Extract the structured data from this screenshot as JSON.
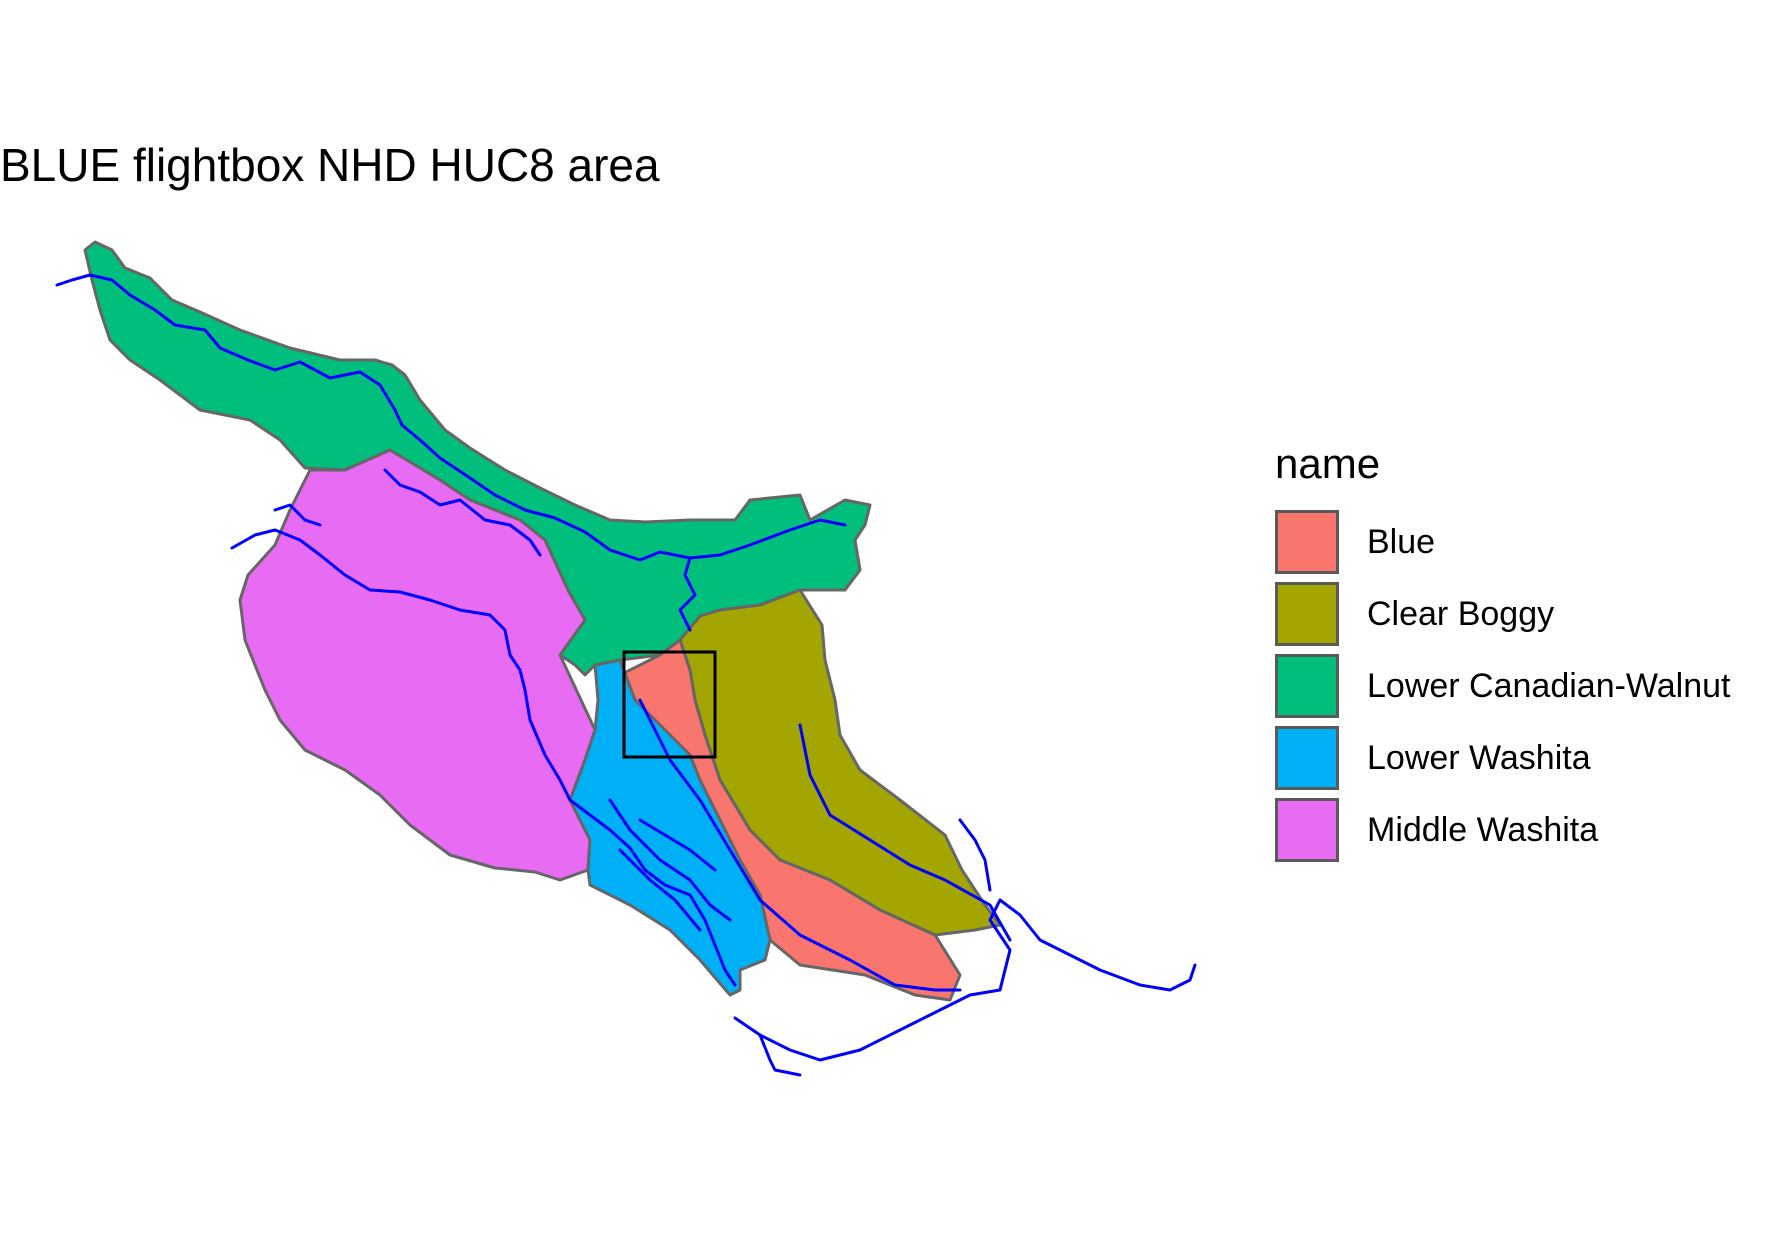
{
  "title": "BLUE flightbox NHD HUC8 area",
  "legend": {
    "title": "name",
    "items": [
      {
        "label": "Blue",
        "color": "#F8766D"
      },
      {
        "label": "Clear Boggy",
        "color": "#A3A500"
      },
      {
        "label": "Lower Canadian-Walnut",
        "color": "#00BF7D"
      },
      {
        "label": "Lower Washita",
        "color": "#00B0F6"
      },
      {
        "label": "Middle Washita",
        "color": "#E76BF3"
      }
    ]
  },
  "styles": {
    "boundary_color": "#666666",
    "river_color": "#0000FF",
    "flightbox_color": "#000000"
  }
}
